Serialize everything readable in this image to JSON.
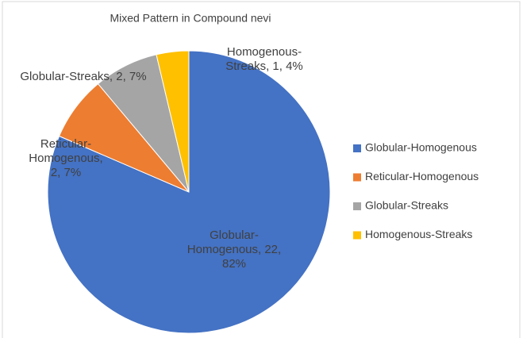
{
  "chart_data": {
    "type": "pie",
    "title": "Mixed Pattern in Compound nevi",
    "categories": [
      "Globular-Homogenous",
      "Reticular-Homogenous",
      "Globular-Streaks",
      "Homogenous-Streaks"
    ],
    "values": [
      22,
      2,
      2,
      1
    ],
    "value_labels": [
      "Globular-Homogenous, 22, 82%",
      "Reticular-Homogenous, 2, 7%",
      "Globular-Streaks, 2, 7%",
      "Homogenous-Streaks, 1, 4%"
    ],
    "colors": [
      "#4472c4",
      "#ed7d31",
      "#a5a5a5",
      "#ffc000"
    ],
    "legend": "right"
  }
}
